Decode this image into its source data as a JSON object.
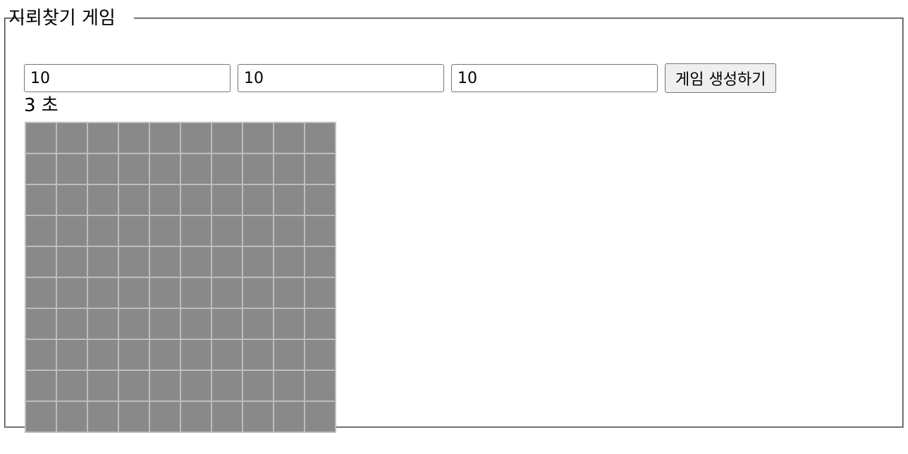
{
  "game": {
    "title": "지뢰찾기 게임"
  },
  "controls": {
    "rows_value": "10",
    "cols_value": "10",
    "mines_value": "10",
    "create_button_label": "게임 생성하기"
  },
  "timer": {
    "text": "3 초"
  },
  "board": {
    "rows": 10,
    "cols": 10,
    "cell_color": "#898989",
    "grid_color": "#bdbdbd",
    "state": "all-hidden"
  }
}
